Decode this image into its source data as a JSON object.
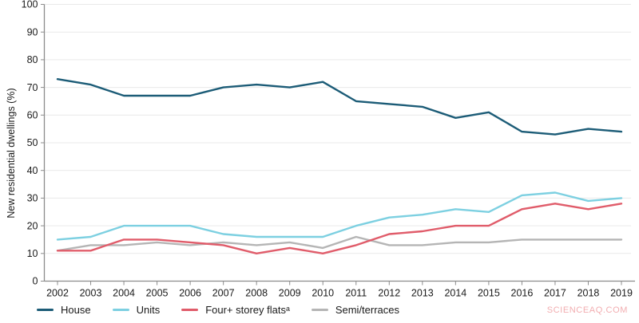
{
  "y_axis_label": "New residential dwellings (%)",
  "watermark": "SCIENCEAQ.COM",
  "colors": {
    "house": "#1c5c77",
    "units": "#7dd0e1",
    "flats": "#e05c6a",
    "semi": "#b5b5b5",
    "axis": "#8c8c8c",
    "gridline": "#e9e9e9",
    "text": "#1a1a1a",
    "watermark": "#f2adb0"
  },
  "chart_data": {
    "type": "line",
    "title": "",
    "xlabel": "",
    "ylabel": "New residential dwellings (%)",
    "ylim": [
      0,
      100
    ],
    "ytick_step": 10,
    "grid": "horizontal",
    "legend_position": "bottom-left",
    "x": [
      "2002",
      "2003",
      "2004",
      "2005",
      "2006",
      "2007",
      "2008",
      "2009",
      "2010",
      "2011",
      "2012",
      "2013",
      "2014",
      "2015",
      "2016",
      "2017",
      "2018",
      "2019"
    ],
    "series": [
      {
        "id": "house",
        "name": "House",
        "color": "#1c5c77",
        "values": [
          73,
          71,
          67,
          67,
          67,
          70,
          71,
          70,
          72,
          65,
          64,
          63,
          59,
          61,
          54,
          53,
          55,
          54
        ]
      },
      {
        "id": "units",
        "name": "Units",
        "color": "#7dd0e1",
        "values": [
          15,
          16,
          20,
          20,
          20,
          17,
          16,
          16,
          16,
          20,
          23,
          24,
          26,
          25,
          31,
          32,
          29,
          30
        ]
      },
      {
        "id": "flats",
        "name": "Four+ storey flatsᵃ",
        "color": "#e05c6a",
        "values": [
          11,
          11,
          15,
          15,
          14,
          13,
          10,
          12,
          10,
          13,
          17,
          18,
          20,
          20,
          26,
          28,
          26,
          28
        ]
      },
      {
        "id": "semi",
        "name": "Semi/terraces",
        "color": "#b5b5b5",
        "values": [
          11,
          13,
          13,
          14,
          13,
          14,
          13,
          14,
          12,
          16,
          13,
          13,
          14,
          14,
          15,
          15,
          15,
          15
        ]
      }
    ]
  }
}
